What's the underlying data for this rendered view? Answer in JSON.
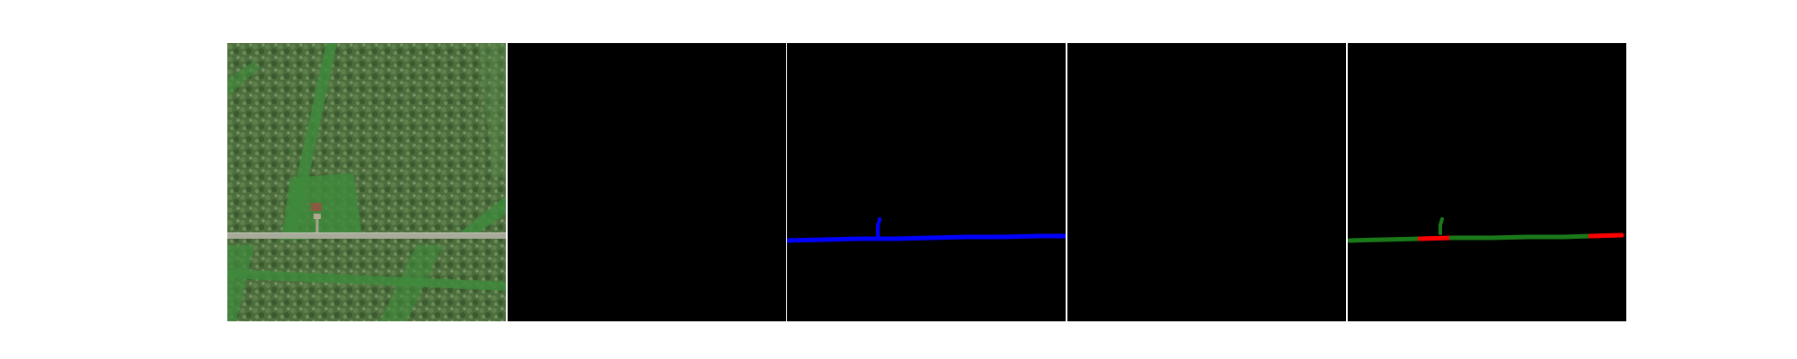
{
  "panels": [
    {
      "name": "aerial-image",
      "kind": "satellite photo"
    },
    {
      "name": "mask-panel-1",
      "kind": "empty mask"
    },
    {
      "name": "mask-panel-2",
      "kind": "road mask"
    },
    {
      "name": "mask-panel-3",
      "kind": "empty mask"
    },
    {
      "name": "mask-panel-4",
      "kind": "comparison mask"
    }
  ],
  "colors": {
    "background": "#ffffff",
    "mask_background": "#000000",
    "road_mask": "#0000ff",
    "match": "#1a7a1a",
    "mismatch": "#ff0000",
    "vegetation": "#4a6e3a",
    "road_surface": "#a8ab9a"
  }
}
